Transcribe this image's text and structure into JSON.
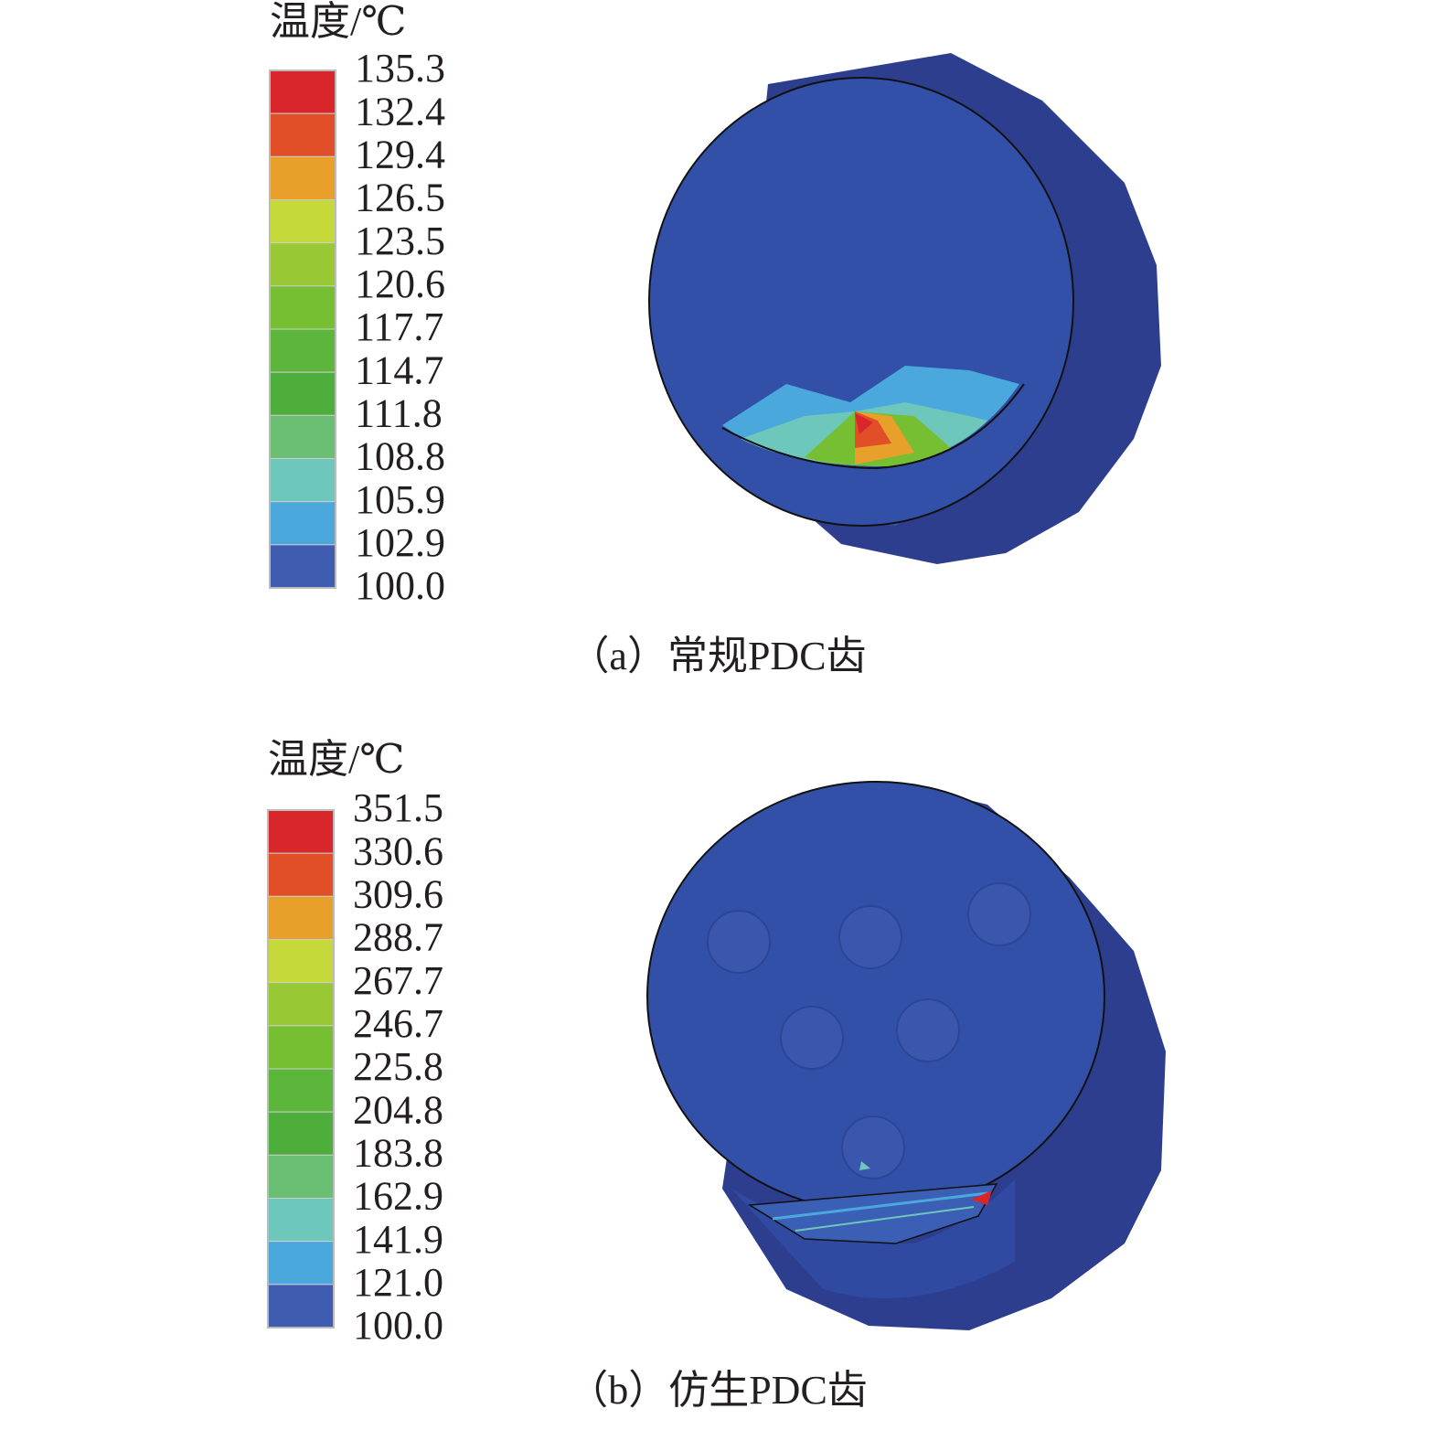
{
  "panels": [
    {
      "legend_title": "温度/℃",
      "legend_labels": [
        "135.3",
        "132.4",
        "129.4",
        "126.5",
        "123.5",
        "120.6",
        "117.7",
        "114.7",
        "111.8",
        "108.8",
        "105.9",
        "102.9",
        "100.0"
      ],
      "caption": "（a）常规PDC齿"
    },
    {
      "legend_title": "温度/℃",
      "legend_labels": [
        "351.5",
        "330.6",
        "309.6",
        "288.7",
        "267.7",
        "246.7",
        "225.8",
        "204.8",
        "183.8",
        "162.9",
        "141.9",
        "121.0",
        "100.0"
      ],
      "caption": "（b）仿生PDC齿"
    }
  ],
  "colors": [
    "#d9262a",
    "#e04f27",
    "#e9a02b",
    "#c6d93a",
    "#98c934",
    "#76bf33",
    "#5bb63b",
    "#4eae3c",
    "#6bbf72",
    "#6ec7bb",
    "#4ba8dd",
    "#3f5cb1",
    "#3150a5"
  ]
}
